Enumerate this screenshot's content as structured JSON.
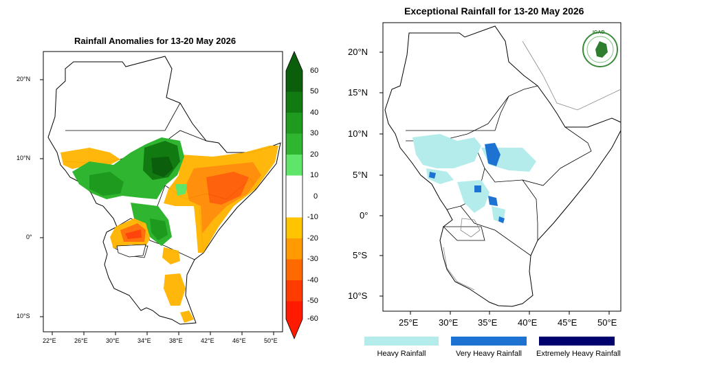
{
  "left_map": {
    "title": "Rainfall Anomalies for 13-20 May 2026",
    "lat_ticks": [
      "20°N",
      "10°N",
      "0°",
      "10°S"
    ],
    "lon_ticks": [
      "22°E",
      "26°E",
      "30°E",
      "34°E",
      "38°E",
      "42°E",
      "46°E",
      "50°E"
    ],
    "colorbar": {
      "labels": [
        "60",
        "50",
        "40",
        "30",
        "20",
        "10",
        "0",
        "-10",
        "-20",
        "-30",
        "-40",
        "-50",
        "-60"
      ],
      "colors": [
        "#0b5e0b",
        "#117a11",
        "#1e9a1e",
        "#2fb52f",
        "#5fe66a",
        "#ffffff",
        "#ffffff",
        "#ffc400",
        "#ff9a00",
        "#ff6a00",
        "#ff3c00",
        "#ff1a00"
      ]
    }
  },
  "right_map": {
    "title": "Exceptional Rainfall for 13-20 May 2026",
    "lat_ticks": [
      "20°N",
      "15°N",
      "10°N",
      "5°N",
      "0°",
      "5°S",
      "10°S"
    ],
    "lon_ticks": [
      "25°E",
      "30°E",
      "35°E",
      "40°E",
      "45°E",
      "50°E"
    ],
    "logo_text": "IGAD",
    "legend": [
      {
        "label": "Heavy Rainfall",
        "color": "#b4ecec"
      },
      {
        "label": "Very Heavy Rainfall",
        "color": "#1e73d2"
      },
      {
        "label": "Extremely Heavy Rainfall",
        "color": "#00006e"
      }
    ]
  }
}
